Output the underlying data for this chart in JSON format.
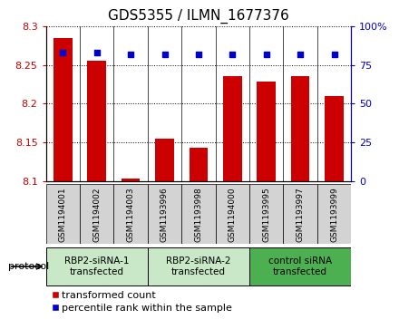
{
  "title": "GDS5355 / ILMN_1677376",
  "samples": [
    "GSM1194001",
    "GSM1194002",
    "GSM1194003",
    "GSM1193996",
    "GSM1193998",
    "GSM1194000",
    "GSM1193995",
    "GSM1193997",
    "GSM1193999"
  ],
  "bar_values": [
    8.285,
    8.255,
    8.103,
    8.155,
    8.143,
    8.235,
    8.228,
    8.235,
    8.21
  ],
  "percentile_values": [
    83,
    83,
    82,
    82,
    82,
    82,
    82,
    82,
    82
  ],
  "bar_color": "#cc0000",
  "dot_color": "#0000cc",
  "ylim_left": [
    8.1,
    8.3
  ],
  "ylim_right": [
    0,
    100
  ],
  "yticks_left": [
    8.1,
    8.15,
    8.2,
    8.25,
    8.3
  ],
  "yticks_right": [
    0,
    25,
    50,
    75,
    100
  ],
  "groups": [
    {
      "label": "RBP2-siRNA-1\ntransfected",
      "start": 0,
      "end": 2,
      "color": "#c8e8c8"
    },
    {
      "label": "RBP2-siRNA-2\ntransfected",
      "start": 3,
      "end": 5,
      "color": "#c8e8c8"
    },
    {
      "label": "control siRNA\ntransfected",
      "start": 6,
      "end": 8,
      "color": "#4caf50"
    }
  ],
  "protocol_label": "protocol",
  "bar_width": 0.55,
  "background_color": "#ffffff",
  "title_fontsize": 11,
  "legend_fontsize": 8,
  "axis_color_left": "#cc0000",
  "axis_color_right": "#0000cc",
  "sample_bg_color": "#d3d3d3"
}
